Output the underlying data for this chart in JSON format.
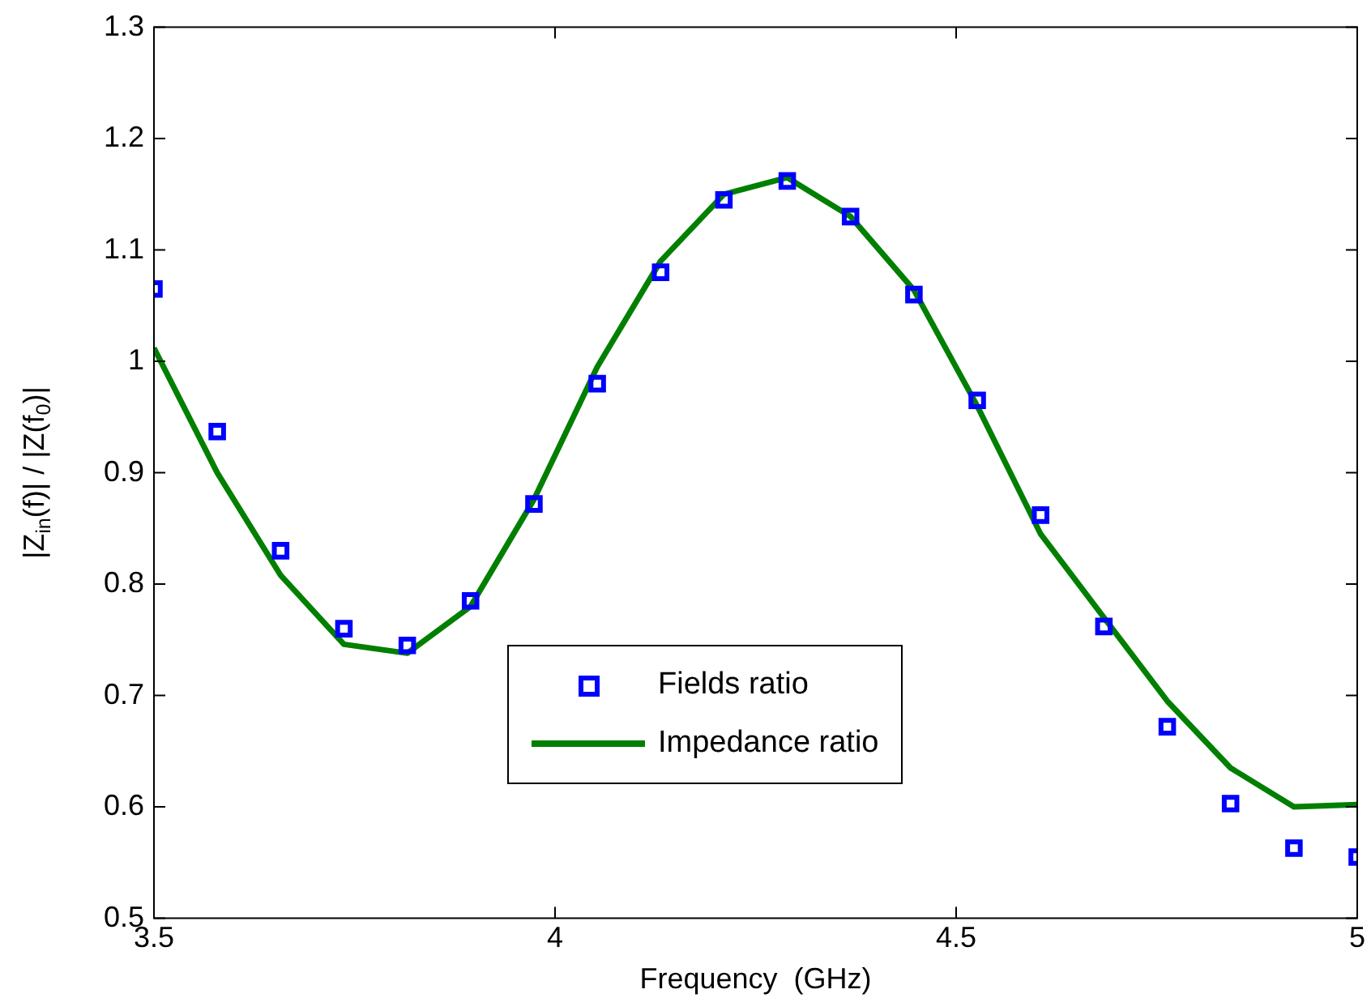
{
  "chart_data": {
    "type": "scatter",
    "xlabel": "Frequency  (GHz)",
    "ylabel": "|Z$_{in}$(f)| / |Z(f$_{0}$)|",
    "x": [
      3.5,
      3.5789,
      3.6579,
      3.7368,
      3.8158,
      3.8947,
      3.9737,
      4.0526,
      4.1316,
      4.2105,
      4.2895,
      4.3684,
      4.4474,
      4.5263,
      4.6053,
      4.6842,
      4.7632,
      4.8421,
      4.9211,
      5.0
    ],
    "series": [
      {
        "name": "Fields ratio",
        "type": "scatter",
        "marker": "square",
        "color": "#0000ff",
        "values": [
          1.065,
          0.937,
          0.83,
          0.76,
          0.745,
          0.785,
          0.872,
          0.98,
          1.08,
          1.145,
          1.162,
          1.13,
          1.06,
          0.965,
          0.862,
          0.762,
          0.672,
          0.603,
          0.563,
          0.555
        ]
      },
      {
        "name": "Impedance ratio",
        "type": "line",
        "marker": "none",
        "color": "#007f00",
        "values": [
          1.012,
          0.9,
          0.808,
          0.746,
          0.738,
          0.78,
          0.876,
          0.995,
          1.09,
          1.15,
          1.165,
          1.13,
          1.064,
          0.96,
          0.845,
          0.77,
          0.695,
          0.635,
          0.6,
          0.602
        ]
      }
    ],
    "xlim": [
      3.5,
      5
    ],
    "xticks": [
      3.5,
      4,
      4.5,
      5
    ],
    "ylim": [
      0.5,
      1.3
    ],
    "yticks": [
      0.5,
      0.6,
      0.7,
      0.8,
      0.9,
      1,
      1.1,
      1.2,
      1.3
    ],
    "grid": false,
    "legend": "bottom"
  }
}
